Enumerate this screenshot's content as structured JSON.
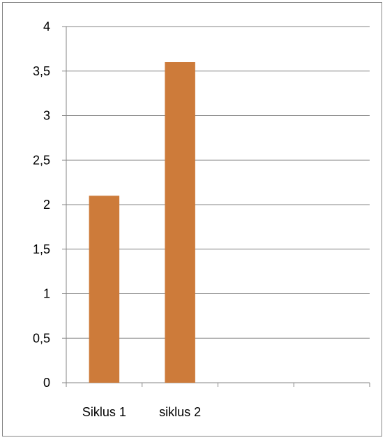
{
  "chart_data": {
    "type": "bar",
    "categories": [
      "Siklus 1",
      "siklus 2",
      "",
      ""
    ],
    "values": [
      2.1,
      3.6,
      null,
      null
    ],
    "ylim": [
      0,
      4
    ],
    "yticks": [
      "0",
      "0,5",
      "1",
      "1,5",
      "2",
      "2,5",
      "3",
      "3,5",
      "4"
    ],
    "ytick_values": [
      0,
      0.5,
      1,
      1.5,
      2,
      2.5,
      3,
      3.5,
      4
    ],
    "grid": true,
    "legend": "none",
    "bar_color": "#CD7B3A",
    "grid_color": "#868686",
    "title": "",
    "xlabel": "",
    "ylabel": ""
  }
}
